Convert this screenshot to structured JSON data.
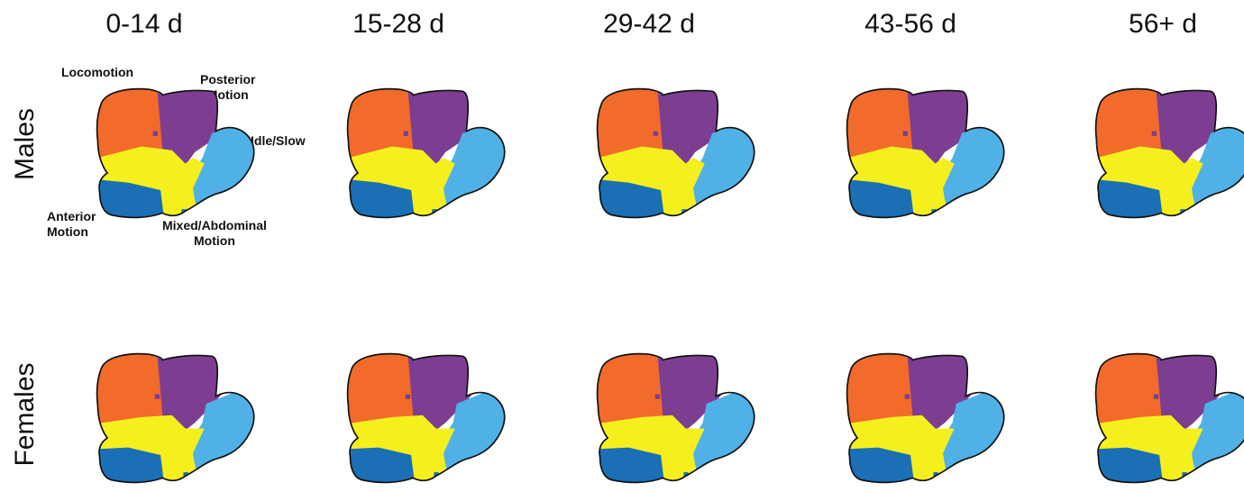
{
  "columns": [
    "0-14 d",
    "15-28 d",
    "29-42 d",
    "43-56 d",
    "56+ d"
  ],
  "rows": [
    "Males",
    "Females"
  ],
  "behaviors": [
    {
      "key": "locomotion",
      "label": "Locomotion",
      "color": "#f26b2a"
    },
    {
      "key": "posterior",
      "label": "Posterior Motion",
      "color": "#7d3e92"
    },
    {
      "key": "idle",
      "label": "Idle/Slow",
      "color": "#4fb1e6"
    },
    {
      "key": "anterior",
      "label": "Anterior Motion",
      "color": "#1b6fb5"
    },
    {
      "key": "mixed",
      "label": "Mixed/Abdominal Motion",
      "color": "#f5f01d"
    }
  ],
  "annotations": {
    "locomotion": "Locomotion",
    "posterior_line1": "Posterior",
    "posterior_line2": "Motion",
    "idle": "Idle/Slow",
    "anterior_line1": "Anterior",
    "anterior_line2": "Motion",
    "mixed_line1": "Mixed/Abdominal",
    "mixed_line2": "Motion"
  }
}
